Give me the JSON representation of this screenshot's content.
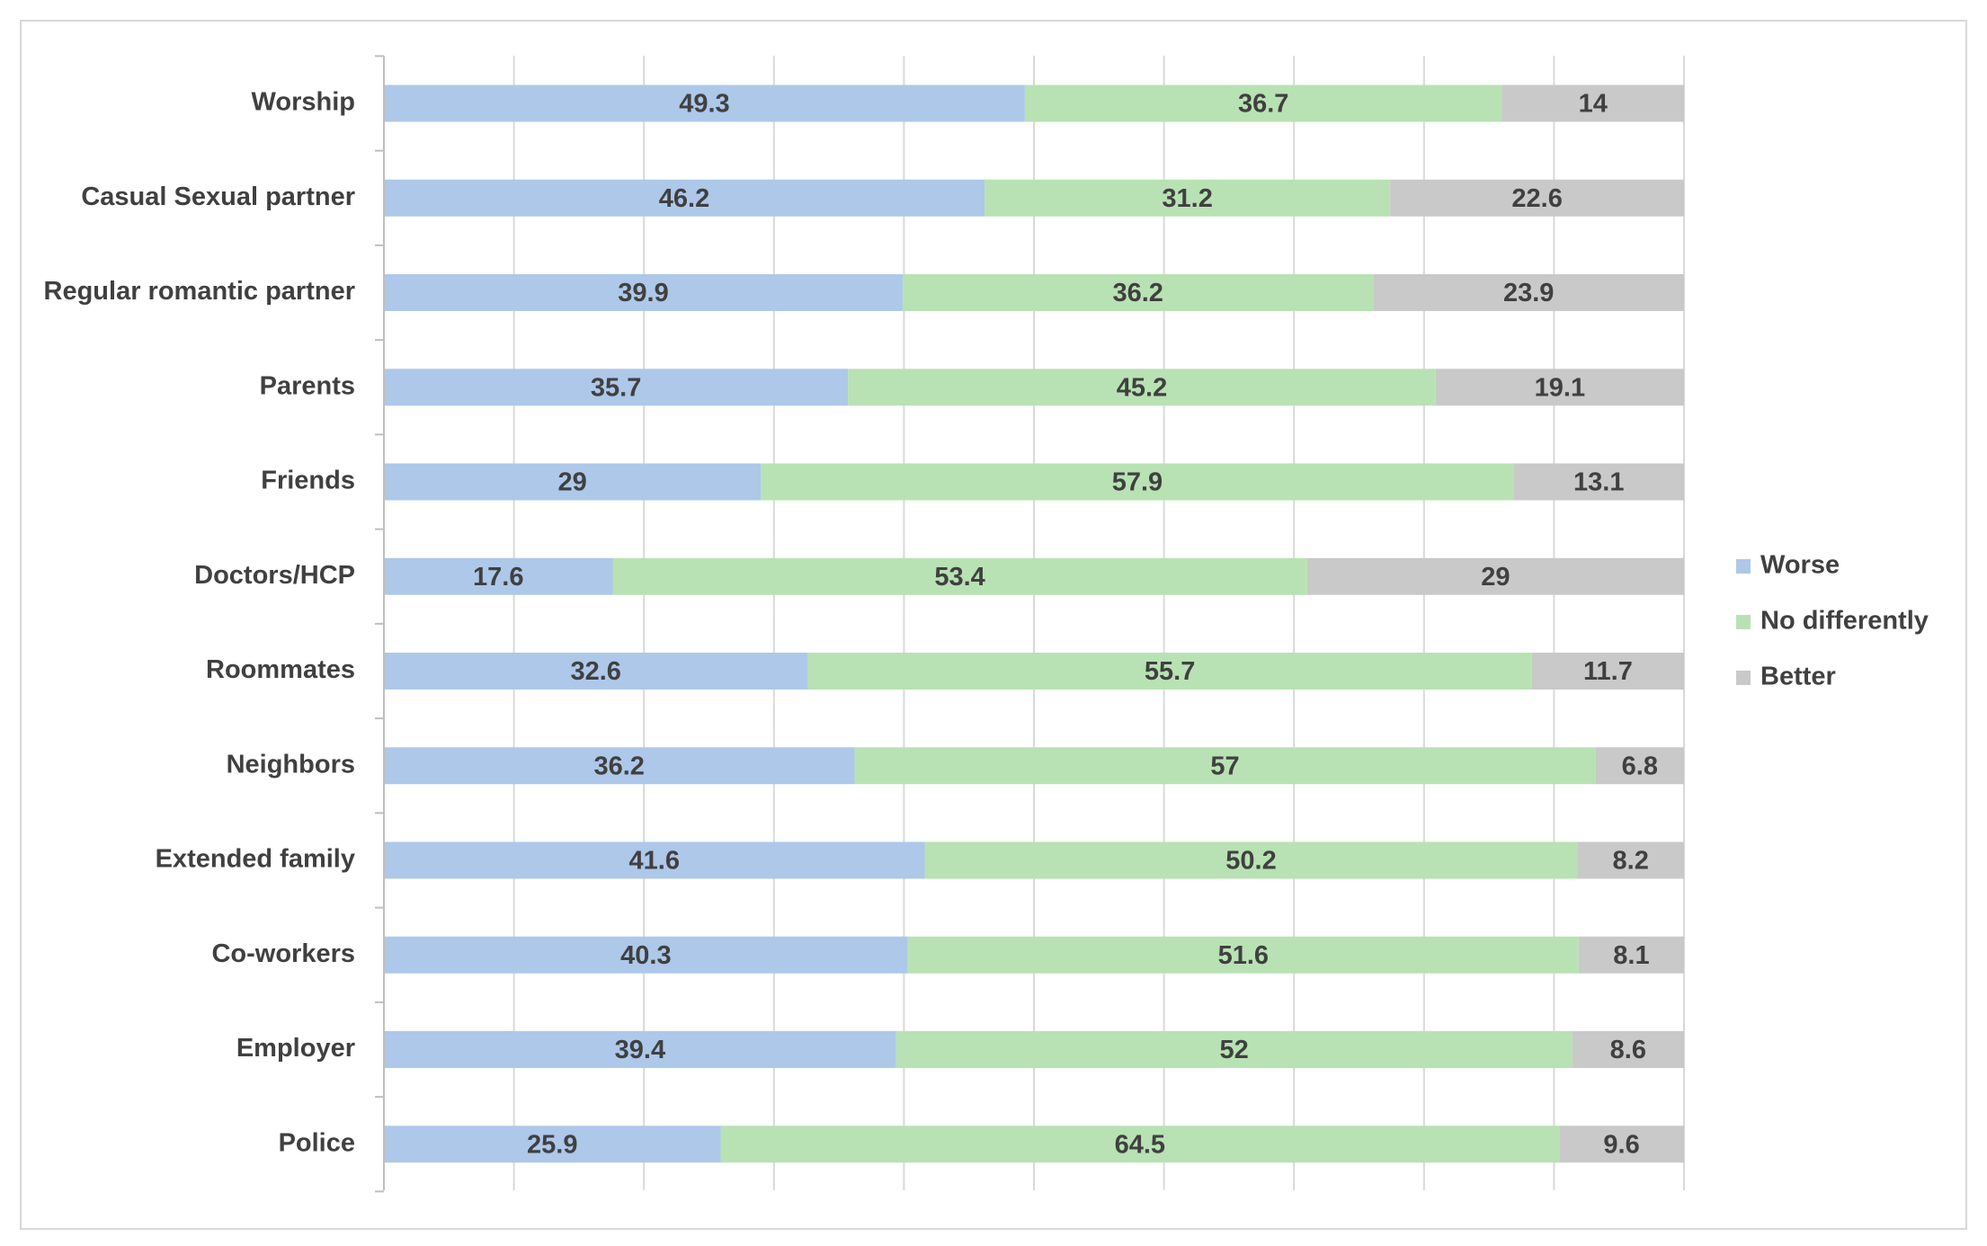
{
  "chart_data": {
    "type": "bar",
    "orientation": "horizontal",
    "stacked": true,
    "categories": [
      "Worship",
      "Casual Sexual partner",
      "Regular romantic partner",
      "Parents",
      "Friends",
      "Doctors/HCP",
      "Roommates",
      "Neighbors",
      "Extended family",
      "Co-workers",
      "Employer",
      "Police"
    ],
    "series": [
      {
        "name": "Worse",
        "color": "#adc8e9",
        "values": [
          49.3,
          46.2,
          39.9,
          35.7,
          29,
          17.6,
          32.6,
          36.2,
          41.6,
          40.3,
          39.4,
          25.9
        ]
      },
      {
        "name": "No differently",
        "color": "#b8e2b3",
        "values": [
          36.7,
          31.2,
          36.2,
          45.2,
          57.9,
          53.4,
          55.7,
          57,
          50.2,
          51.6,
          52,
          64.5
        ]
      },
      {
        "name": "Better",
        "color": "#c9c9c9",
        "values": [
          14,
          22.6,
          23.9,
          19.1,
          13.1,
          29,
          11.7,
          6.8,
          8.2,
          8.1,
          8.6,
          9.6
        ]
      }
    ],
    "xlim": [
      0,
      100
    ],
    "x_gridlines": [
      0,
      10,
      20,
      30,
      40,
      50,
      60,
      70,
      80,
      90,
      100
    ],
    "grid": true,
    "x_tick_labels_shown": false,
    "legend": "right",
    "data_labels": true
  }
}
